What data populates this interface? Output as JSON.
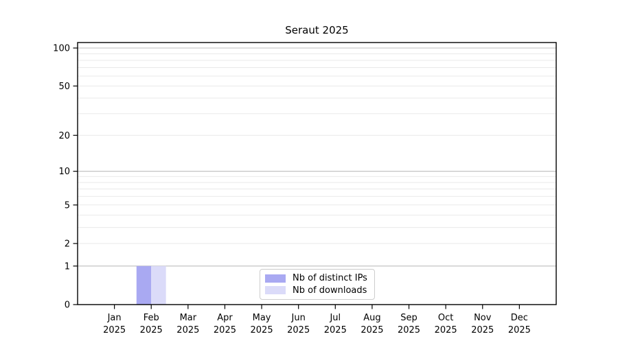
{
  "chart_data": {
    "type": "bar",
    "title": "Seraut 2025",
    "categories": [
      "Jan",
      "Feb",
      "Mar",
      "Apr",
      "May",
      "Jun",
      "Jul",
      "Aug",
      "Sep",
      "Oct",
      "Nov",
      "Dec"
    ],
    "x_year_label": "2025",
    "series": [
      {
        "name": "Nb of distinct IPs",
        "color": "#a9a9f2",
        "values": [
          0,
          1,
          0,
          0,
          0,
          0,
          0,
          0,
          0,
          0,
          0,
          0
        ]
      },
      {
        "name": "Nb of downloads",
        "color": "#dbdbf9",
        "values": [
          0,
          1,
          0,
          0,
          0,
          0,
          0,
          0,
          0,
          0,
          0,
          0
        ]
      }
    ],
    "y_axis": {
      "scale": "log1p",
      "ylim": [
        0,
        110
      ],
      "tick_labels": [
        0,
        1,
        2,
        5,
        10,
        20,
        50,
        100
      ],
      "strong_gridlines": [
        1,
        10,
        100
      ],
      "light_gridlines": [
        2,
        3,
        4,
        5,
        6,
        7,
        8,
        9,
        20,
        30,
        40,
        50,
        60,
        70,
        80,
        90
      ]
    },
    "legend": {
      "position": "lower center"
    },
    "colors": {
      "axis": "#000000",
      "grid_strong": "#bdbdbd",
      "grid_light": "#e9e9e9"
    }
  }
}
